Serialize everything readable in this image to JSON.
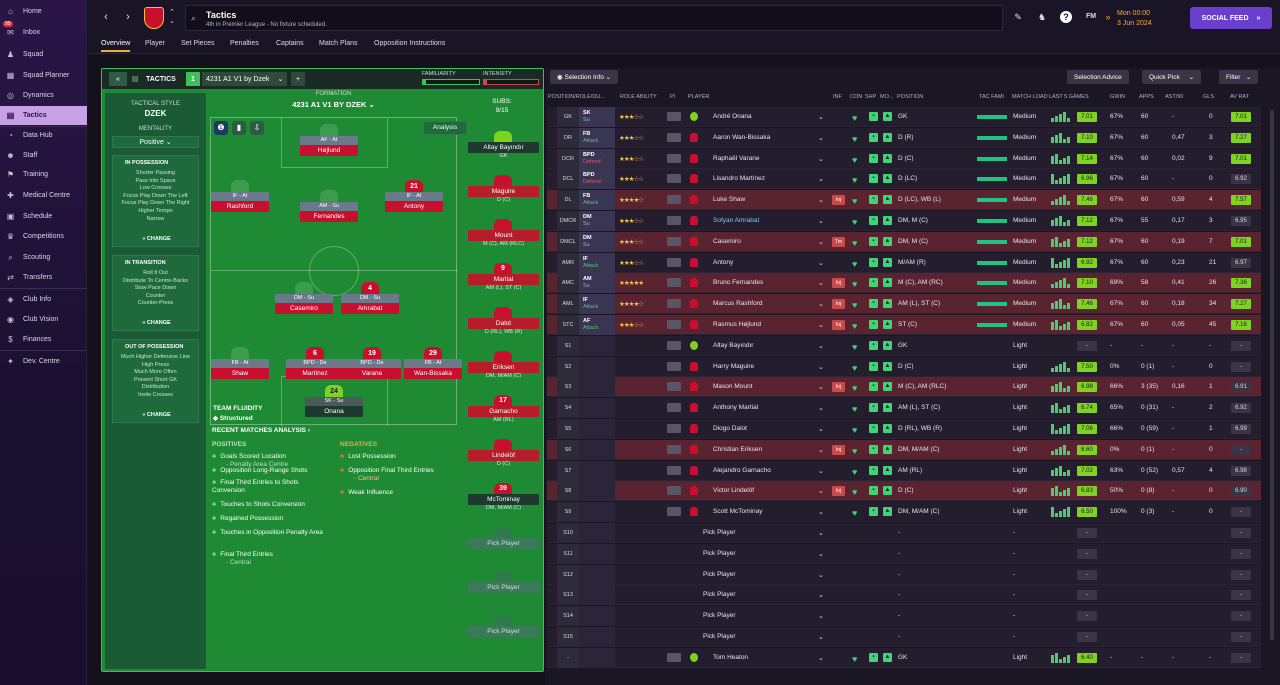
{
  "sidebar": {
    "items": [
      {
        "label": "Home",
        "icon": "home-icon",
        "glyph": "⌂"
      },
      {
        "label": "Inbox",
        "icon": "inbox-icon",
        "glyph": "✉",
        "badge": "99"
      },
      {
        "label": "Squad",
        "icon": "squad-icon",
        "glyph": "♟"
      },
      {
        "label": "Squad Planner",
        "icon": "planner-icon",
        "glyph": "▦"
      },
      {
        "label": "Dynamics",
        "icon": "dynamics-icon",
        "glyph": "◎"
      },
      {
        "label": "Tactics",
        "icon": "tactics-icon",
        "glyph": "▤",
        "active": true
      },
      {
        "label": "Data Hub",
        "icon": "datahub-icon",
        "glyph": "◔"
      },
      {
        "label": "Staff",
        "icon": "staff-icon",
        "glyph": "☻"
      },
      {
        "label": "Training",
        "icon": "training-icon",
        "glyph": "⚑"
      },
      {
        "label": "Medical Centre",
        "icon": "medical-icon",
        "glyph": "✚"
      },
      {
        "label": "Schedule",
        "icon": "schedule-icon",
        "glyph": "▣"
      },
      {
        "label": "Competitions",
        "icon": "trophy-icon",
        "glyph": "♛"
      },
      {
        "label": "Scouting",
        "icon": "scouting-icon",
        "glyph": "⌕"
      },
      {
        "label": "Transfers",
        "icon": "transfers-icon",
        "glyph": "⇄"
      },
      {
        "label": "Club Info",
        "icon": "club-info-icon",
        "glyph": "◈"
      },
      {
        "label": "Club Vision",
        "icon": "vision-icon",
        "glyph": "◉"
      },
      {
        "label": "Finances",
        "icon": "finances-icon",
        "glyph": "$"
      },
      {
        "label": "Dev. Centre",
        "icon": "dev-centre-icon",
        "glyph": "✦"
      }
    ]
  },
  "topbar": {
    "title": "Tactics",
    "subtitle": "4th in Premier League - No fixture scheduled.",
    "time": "Mon 00:00",
    "date": "3 Jun 2024",
    "social_feed": "SOCIAL FEED",
    "fm": "FM"
  },
  "subnav": [
    "Overview",
    "Player",
    "Set Pieces",
    "Penalties",
    "Captains",
    "Match Plans",
    "Opposition Instructions"
  ],
  "tactics": {
    "header": "TACTICS",
    "slot": "1",
    "name": "4231 A1 V1 by Dzek",
    "familiarity_label": "FAMILIARITY",
    "intensity_label": "INTENSITY",
    "familiarity": 0.05,
    "intensity": 0.05,
    "formation_label": "FORMATION",
    "formation_name": "4231 A1 V1 BY DZEK",
    "subs_label": "SUBS:",
    "subs_count": "9/15",
    "analysis_btn": "Analysis",
    "style_label": "TACTICAL STYLE",
    "style": "DZEK",
    "mentality_label": "MENTALITY",
    "mentality": "Positive",
    "in_possession": {
      "title": "IN POSSESSION",
      "items": [
        "Shorter Passing",
        "Pass Into Space",
        "Low Crosses",
        "Focus Play Down The Left",
        "Focus Play Down The Right",
        "Higher Tempo",
        "Narrow"
      ],
      "change": "CHANGE"
    },
    "in_transition": {
      "title": "IN TRANSITION",
      "items": [
        "Roll It Out",
        "Distribute To Centre-Backs",
        "Slow Pace Down",
        "Counter",
        "Counter-Press"
      ],
      "change": "CHANGE"
    },
    "out_possession": {
      "title": "OUT OF POSSESSION",
      "items": [
        "Much Higher Defensive Line",
        "High Press",
        "Much More Often",
        "Prevent Short GK",
        "Distribution",
        "Invite Crosses"
      ],
      "change": "CHANGE"
    },
    "fluidity_label": "TEAM FLUIDITY",
    "fluidity": "Structured",
    "players": [
      {
        "role": "AF - At",
        "name": "Højlund",
        "num": "",
        "gk": false
      },
      {
        "role": "IF - At",
        "name": "Rashford",
        "num": "",
        "gk": false
      },
      {
        "role": "AM - Su",
        "name": "Fernandes",
        "num": "",
        "gk": false
      },
      {
        "role": "IF - At",
        "name": "Antony",
        "num": "21",
        "gk": false
      },
      {
        "role": "DM - Su",
        "name": "Casemiro",
        "num": "",
        "gk": false
      },
      {
        "role": "DM - Su",
        "name": "Amrabat",
        "num": "4",
        "gk": false
      },
      {
        "role": "FB - At",
        "name": "Shaw",
        "num": "",
        "gk": false
      },
      {
        "role": "BPD - De",
        "name": "Martínez",
        "num": "6",
        "gk": false
      },
      {
        "role": "BPD - De",
        "name": "Varane",
        "num": "19",
        "gk": false
      },
      {
        "role": "FB - At",
        "name": "Wan-Bissaka",
        "num": "29",
        "gk": false
      },
      {
        "role": "SK - Su",
        "name": "Onana",
        "num": "24",
        "gk": true
      }
    ],
    "subs": [
      {
        "name": "Altay Bayındır",
        "pos": "GK",
        "num": ""
      },
      {
        "name": "Maguire",
        "pos": "D (C)",
        "num": ""
      },
      {
        "name": "Mount",
        "pos": "M (C), AM (RLC)",
        "num": ""
      },
      {
        "name": "Martial",
        "pos": "AM (L), ST (C)",
        "num": "9"
      },
      {
        "name": "Dalot",
        "pos": "D (RL), WB (R)",
        "num": ""
      },
      {
        "name": "Eriksen",
        "pos": "DM, M/AM (C)",
        "num": ""
      },
      {
        "name": "Garnacho",
        "pos": "AM (RL)",
        "num": "17"
      },
      {
        "name": "Lindelöf",
        "pos": "D (C)",
        "num": ""
      },
      {
        "name": "McTominay",
        "pos": "DM, M/AM (C)",
        "num": "39"
      },
      {
        "name": "Pick Player",
        "pos": "",
        "num": ""
      },
      {
        "name": "Pick Player",
        "pos": "",
        "num": ""
      },
      {
        "name": "Pick Player",
        "pos": "",
        "num": ""
      }
    ],
    "analysis": {
      "title": "RECENT MATCHES ANALYSIS",
      "positives_label": "POSITIVES",
      "negatives_label": "NEGATIVES",
      "positives": [
        [
          "Goals Scored Location",
          "- Penalty Area Centre"
        ],
        [
          "Opposition Long-Range Shots",
          ""
        ],
        [
          "Final Third Entries to Shots Conversion",
          ""
        ],
        [
          "Touches to Shots Conversion",
          ""
        ],
        [
          "Regained Possession",
          ""
        ],
        [
          "Touches in Opposition Penalty Area",
          ""
        ],
        [
          "Final Third Entries",
          "- Central"
        ]
      ],
      "negatives": [
        [
          "Lost Possession",
          ""
        ],
        [
          "Opposition Final Third Entries",
          "- Central"
        ],
        [
          "Weak Influence",
          ""
        ]
      ]
    }
  },
  "selection": {
    "info_btn": "Selection Info",
    "advice_btn": "Selection Advice",
    "quickpick_btn": "Quick Pick",
    "filter_btn": "Filter",
    "columns": [
      "POSITION/ROLE/DU...",
      "ROLE ABILITY",
      "PI",
      "PLAYER",
      "INF",
      "CON",
      "SHP",
      "MO...",
      "POSITION",
      "TAC FAMI",
      "MATCH LOAD",
      "LAST 5 GAMES",
      "GWIN",
      "APPS",
      "AST/90",
      "GLS",
      "AV RAT"
    ],
    "rows": [
      {
        "pos": "GK",
        "role": "SK",
        "duty": "Su",
        "dc": "s",
        "stars": "★★★☆☆",
        "player": "André Onana",
        "gk": true,
        "inf": "",
        "position": "GK",
        "load": "Medium",
        "rating": "7.01",
        "gwin": "67%",
        "apps": "60",
        "ast": "-",
        "gls": "0",
        "avr": "7.01",
        "style": "dark"
      },
      {
        "pos": "DR",
        "role": "FB",
        "duty": "Attack",
        "dc": "a",
        "stars": "★★★☆☆",
        "player": "Aaron Wan-Bissaka",
        "gk": false,
        "inf": "",
        "position": "D (R)",
        "load": "Medium",
        "rating": "7.10",
        "gwin": "67%",
        "apps": "60",
        "ast": "0,47",
        "gls": "3",
        "avr": "7.27",
        "style": "dark"
      },
      {
        "pos": "DCR",
        "role": "BPD",
        "duty": "Defend",
        "dc": "d",
        "stars": "★★★☆☆",
        "player": "Raphaël Varane",
        "gk": false,
        "inf": "",
        "position": "D (C)",
        "load": "Medium",
        "rating": "7.14",
        "gwin": "67%",
        "apps": "60",
        "ast": "0,02",
        "gls": "9",
        "avr": "7.01",
        "style": "dark"
      },
      {
        "pos": "DCL",
        "role": "BPD",
        "duty": "Defend",
        "dc": "d",
        "stars": "★★★☆☆",
        "player": "Lisandro Martínez",
        "gk": false,
        "inf": "",
        "position": "D (LC)",
        "load": "Medium",
        "rating": "6.96",
        "gwin": "67%",
        "apps": "60",
        "ast": "-",
        "gls": "0",
        "avr": "6.92",
        "style": "dark"
      },
      {
        "pos": "DL",
        "role": "FB",
        "duty": "Attack",
        "dc": "a",
        "stars": "★★★★☆",
        "player": "Luke Shaw",
        "gk": false,
        "inf": "Inj",
        "position": "D (LC), WB (L)",
        "load": "Medium",
        "rating": "7.46",
        "gwin": "67%",
        "apps": "60",
        "ast": "0,59",
        "gls": "4",
        "avr": "7.57",
        "style": "red"
      },
      {
        "pos": "DMCR",
        "role": "DM",
        "duty": "Su",
        "dc": "s",
        "stars": "★★★☆☆",
        "player": "Sofyan Amrabat",
        "gk": false,
        "inf": "",
        "position": "DM, M (C)",
        "load": "Medium",
        "rating": "7.12",
        "gwin": "67%",
        "apps": "55",
        "ast": "0,17",
        "gls": "3",
        "avr": "6.95",
        "style": "dark"
      },
      {
        "pos": "DMCL",
        "role": "DM",
        "duty": "Su",
        "dc": "s",
        "stars": "★★★☆☆",
        "player": "Casemiro",
        "gk": false,
        "inf": "Tm",
        "position": "DM, M (C)",
        "load": "Medium",
        "rating": "7.12",
        "gwin": "67%",
        "apps": "60",
        "ast": "0,19",
        "gls": "7",
        "avr": "7.01",
        "style": "red"
      },
      {
        "pos": "AMR",
        "role": "IF",
        "duty": "Attack",
        "dc": "a",
        "stars": "★★★☆☆",
        "player": "Antony",
        "gk": false,
        "inf": "",
        "position": "M/AM (R)",
        "load": "Medium",
        "rating": "6.92",
        "gwin": "67%",
        "apps": "60",
        "ast": "0,23",
        "gls": "21",
        "avr": "6.97",
        "style": "dark"
      },
      {
        "pos": "AMC",
        "role": "AM",
        "duty": "Su",
        "dc": "s",
        "stars": "★★★★★",
        "player": "Bruno Fernandes",
        "gk": false,
        "inf": "Inj",
        "position": "M (C), AM (RC)",
        "load": "Medium",
        "rating": "7.10",
        "gwin": "69%",
        "apps": "58",
        "ast": "0,41",
        "gls": "26",
        "avr": "7.36",
        "style": "red"
      },
      {
        "pos": "AML",
        "role": "IF",
        "duty": "Attack",
        "dc": "a",
        "stars": "★★★★☆",
        "player": "Marcus Rashford",
        "gk": false,
        "inf": "Inj",
        "position": "AM (L), ST (C)",
        "load": "Medium",
        "rating": "7.46",
        "gwin": "67%",
        "apps": "60",
        "ast": "0,18",
        "gls": "34",
        "avr": "7.27",
        "style": "red"
      },
      {
        "pos": "STC",
        "role": "AF",
        "duty": "Attack",
        "dc": "a",
        "stars": "★★★☆☆",
        "player": "Rasmus Højlund",
        "gk": false,
        "inf": "Inj",
        "position": "ST (C)",
        "load": "Medium",
        "rating": "6.82",
        "gwin": "67%",
        "apps": "60",
        "ast": "0,05",
        "gls": "45",
        "avr": "7.16",
        "style": "red"
      },
      {
        "pos": "S1",
        "role": "",
        "duty": "",
        "dc": "",
        "stars": "",
        "player": "Altay Bayındır",
        "gk": true,
        "inf": "",
        "position": "GK",
        "load": "Light",
        "rating": "-",
        "gwin": "-",
        "apps": "-",
        "ast": "-",
        "gls": "-",
        "avr": "-",
        "style": "dark"
      },
      {
        "pos": "S2",
        "role": "",
        "duty": "",
        "dc": "",
        "stars": "",
        "player": "Harry Maguire",
        "gk": false,
        "inf": "",
        "position": "D (C)",
        "load": "Light",
        "rating": "7.50",
        "gwin": "0%",
        "apps": "0 (1)",
        "ast": "-",
        "gls": "0",
        "avr": "-",
        "style": "dark"
      },
      {
        "pos": "S3",
        "role": "",
        "duty": "",
        "dc": "",
        "stars": "",
        "player": "Mason Mount",
        "gk": false,
        "inf": "Inj",
        "position": "M (C), AM (RLC)",
        "load": "Light",
        "rating": "6.98",
        "gwin": "66%",
        "apps": "3 (35)",
        "ast": "0,16",
        "gls": "1",
        "avr": "6.91",
        "style": "red"
      },
      {
        "pos": "S4",
        "role": "",
        "duty": "",
        "dc": "",
        "stars": "",
        "player": "Anthony Martial",
        "gk": false,
        "inf": "",
        "position": "AM (L), ST (C)",
        "load": "Light",
        "rating": "6.74",
        "gwin": "65%",
        "apps": "0 (31)",
        "ast": "-",
        "gls": "2",
        "avr": "6.92",
        "style": "dark"
      },
      {
        "pos": "S5",
        "role": "",
        "duty": "",
        "dc": "",
        "stars": "",
        "player": "Diogo Dalot",
        "gk": false,
        "inf": "",
        "position": "D (RL), WB (R)",
        "load": "Light",
        "rating": "7.06",
        "gwin": "66%",
        "apps": "0 (59)",
        "ast": "-",
        "gls": "1",
        "avr": "6.99",
        "style": "dark"
      },
      {
        "pos": "S6",
        "role": "",
        "duty": "",
        "dc": "",
        "stars": "",
        "player": "Christian Eriksen",
        "gk": false,
        "inf": "Inj",
        "position": "DM, M/AM (C)",
        "load": "Light",
        "rating": "6.60",
        "gwin": "0%",
        "apps": "0 (1)",
        "ast": "-",
        "gls": "0",
        "avr": "-",
        "style": "red"
      },
      {
        "pos": "S7",
        "role": "",
        "duty": "",
        "dc": "",
        "stars": "",
        "player": "Alejandro Garnacho",
        "gk": false,
        "inf": "",
        "position": "AM (RL)",
        "load": "Light",
        "rating": "7.02",
        "gwin": "63%",
        "apps": "0 (52)",
        "ast": "0,57",
        "gls": "4",
        "avr": "6.98",
        "style": "dark"
      },
      {
        "pos": "S8",
        "role": "",
        "duty": "",
        "dc": "",
        "stars": "",
        "player": "Victor Lindelöf",
        "gk": false,
        "inf": "Inj",
        "position": "D (C)",
        "load": "Light",
        "rating": "6.83",
        "gwin": "50%",
        "apps": "0 (8)",
        "ast": "-",
        "gls": "0",
        "avr": "6.90",
        "style": "red"
      },
      {
        "pos": "S9",
        "role": "",
        "duty": "",
        "dc": "",
        "stars": "",
        "player": "Scott McTominay",
        "gk": false,
        "inf": "",
        "position": "DM, M/AM (C)",
        "load": "Light",
        "rating": "6.50",
        "gwin": "100%",
        "apps": "0 (3)",
        "ast": "-",
        "gls": "0",
        "avr": "-",
        "style": "dark"
      },
      {
        "pos": "S10",
        "role": "",
        "duty": "",
        "dc": "",
        "stars": "",
        "player": "Pick Player",
        "gk": null,
        "inf": "",
        "position": "-",
        "load": "-",
        "rating": "-",
        "gwin": "",
        "apps": "",
        "ast": "",
        "gls": "",
        "avr": "-",
        "style": "dark"
      },
      {
        "pos": "S11",
        "role": "",
        "duty": "",
        "dc": "",
        "stars": "",
        "player": "Pick Player",
        "gk": null,
        "inf": "",
        "position": "-",
        "load": "-",
        "rating": "-",
        "gwin": "",
        "apps": "",
        "ast": "",
        "gls": "",
        "avr": "-",
        "style": "dark"
      },
      {
        "pos": "S12",
        "role": "",
        "duty": "",
        "dc": "",
        "stars": "",
        "player": "Pick Player",
        "gk": null,
        "inf": "",
        "position": "-",
        "load": "-",
        "rating": "-",
        "gwin": "",
        "apps": "",
        "ast": "",
        "gls": "",
        "avr": "-",
        "style": "dark"
      },
      {
        "pos": "S13",
        "role": "",
        "duty": "",
        "dc": "",
        "stars": "",
        "player": "Pick Player",
        "gk": null,
        "inf": "",
        "position": "-",
        "load": "-",
        "rating": "-",
        "gwin": "",
        "apps": "",
        "ast": "",
        "gls": "",
        "avr": "-",
        "style": "dark"
      },
      {
        "pos": "S14",
        "role": "",
        "duty": "",
        "dc": "",
        "stars": "",
        "player": "Pick Player",
        "gk": null,
        "inf": "",
        "position": "-",
        "load": "-",
        "rating": "-",
        "gwin": "",
        "apps": "",
        "ast": "",
        "gls": "",
        "avr": "-",
        "style": "dark"
      },
      {
        "pos": "S15",
        "role": "",
        "duty": "",
        "dc": "",
        "stars": "",
        "player": "Pick Player",
        "gk": null,
        "inf": "",
        "position": "-",
        "load": "-",
        "rating": "-",
        "gwin": "",
        "apps": "",
        "ast": "",
        "gls": "",
        "avr": "-",
        "style": "dark"
      },
      {
        "pos": "-",
        "role": "",
        "duty": "",
        "dc": "",
        "stars": "",
        "player": "Tom Heaton",
        "gk": true,
        "inf": "",
        "position": "GK",
        "load": "Light",
        "rating": "6.40",
        "gwin": "-",
        "apps": "-",
        "ast": "-",
        "gls": "-",
        "avr": "-",
        "style": "dark"
      }
    ]
  },
  "colors": {
    "accent": "#f2a93b",
    "social": "#6a3fd0",
    "pitch": "#1e8a34",
    "rating_green": "#7ed321",
    "injury": "#c94a4a"
  }
}
